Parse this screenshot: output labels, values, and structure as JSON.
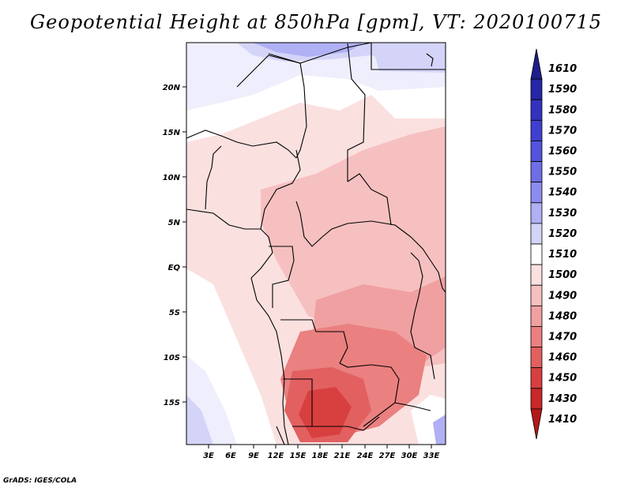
{
  "title": "Geopotential Height at 850hPa [gpm], VT: 2020100715",
  "credit": "GrADS: IGES/COLA",
  "lat_labels": [
    "20N",
    "15N",
    "10N",
    "5N",
    "EQ",
    "5S",
    "10S",
    "15S"
  ],
  "lon_labels": [
    "3E",
    "6E",
    "9E",
    "12E",
    "15E",
    "18E",
    "21E",
    "24E",
    "27E",
    "30E",
    "33E"
  ],
  "colorbar": {
    "levels": [
      "1610",
      "1590",
      "1580",
      "1570",
      "1560",
      "1550",
      "1540",
      "1530",
      "1520",
      "1510",
      "1500",
      "1490",
      "1480",
      "1470",
      "1460",
      "1450",
      "1430",
      "1410"
    ],
    "colors": [
      "#1e1e8c",
      "#2626a8",
      "#3232bf",
      "#4040d0",
      "#5454dc",
      "#6e6ee6",
      "#8c8cee",
      "#b0b0f4",
      "#d4d4f9",
      "#ffffff",
      "#fbe0e0",
      "#f6c0c0",
      "#f0a0a0",
      "#ea8080",
      "#e26060",
      "#d84040",
      "#c82828",
      "#b41818"
    ]
  },
  "map": {
    "projection": "lat-lon",
    "lon_range": [
      0,
      34
    ],
    "lat_range": [
      -19,
      24
    ]
  }
}
